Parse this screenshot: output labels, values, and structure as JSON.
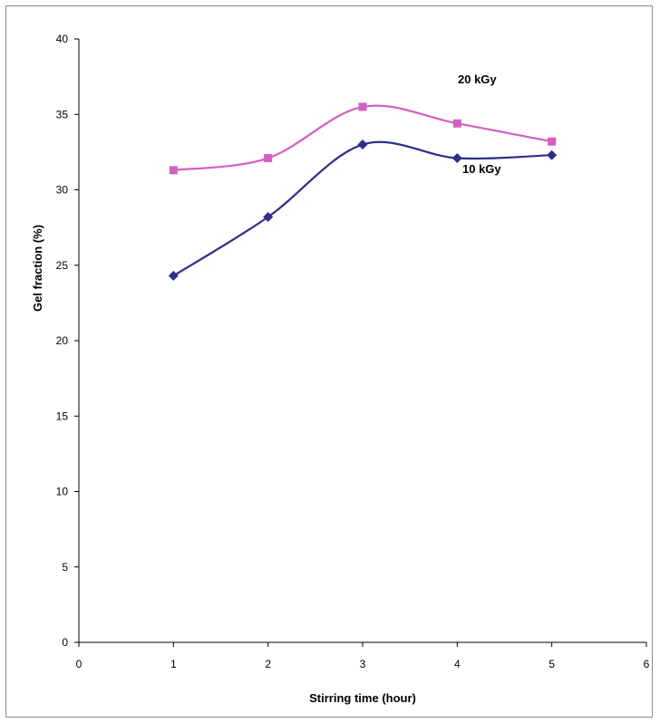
{
  "chart_data": {
    "type": "line",
    "title": "",
    "xlabel": "Stirring time (hour)",
    "ylabel": "Gel fraction (%)",
    "xlim": [
      0,
      6
    ],
    "ylim": [
      0,
      40
    ],
    "xticks": [
      "0",
      "1",
      "2",
      "3",
      "4",
      "5",
      "6"
    ],
    "yticks": [
      "0",
      "5",
      "10",
      "15",
      "20",
      "25",
      "30",
      "35",
      "40"
    ],
    "grid": false,
    "series": [
      {
        "name": "20 kGy",
        "color": "#d35fbf",
        "marker": "square",
        "x": [
          1,
          2,
          3,
          4,
          5
        ],
        "y": [
          31.3,
          32.1,
          35.5,
          34.4,
          33.2
        ]
      },
      {
        "name": "10 kGy",
        "color": "#2e2e8c",
        "marker": "diamond",
        "x": [
          1,
          2,
          3,
          4,
          5
        ],
        "y": [
          24.3,
          28.2,
          33.0,
          32.1,
          32.3
        ]
      }
    ]
  }
}
